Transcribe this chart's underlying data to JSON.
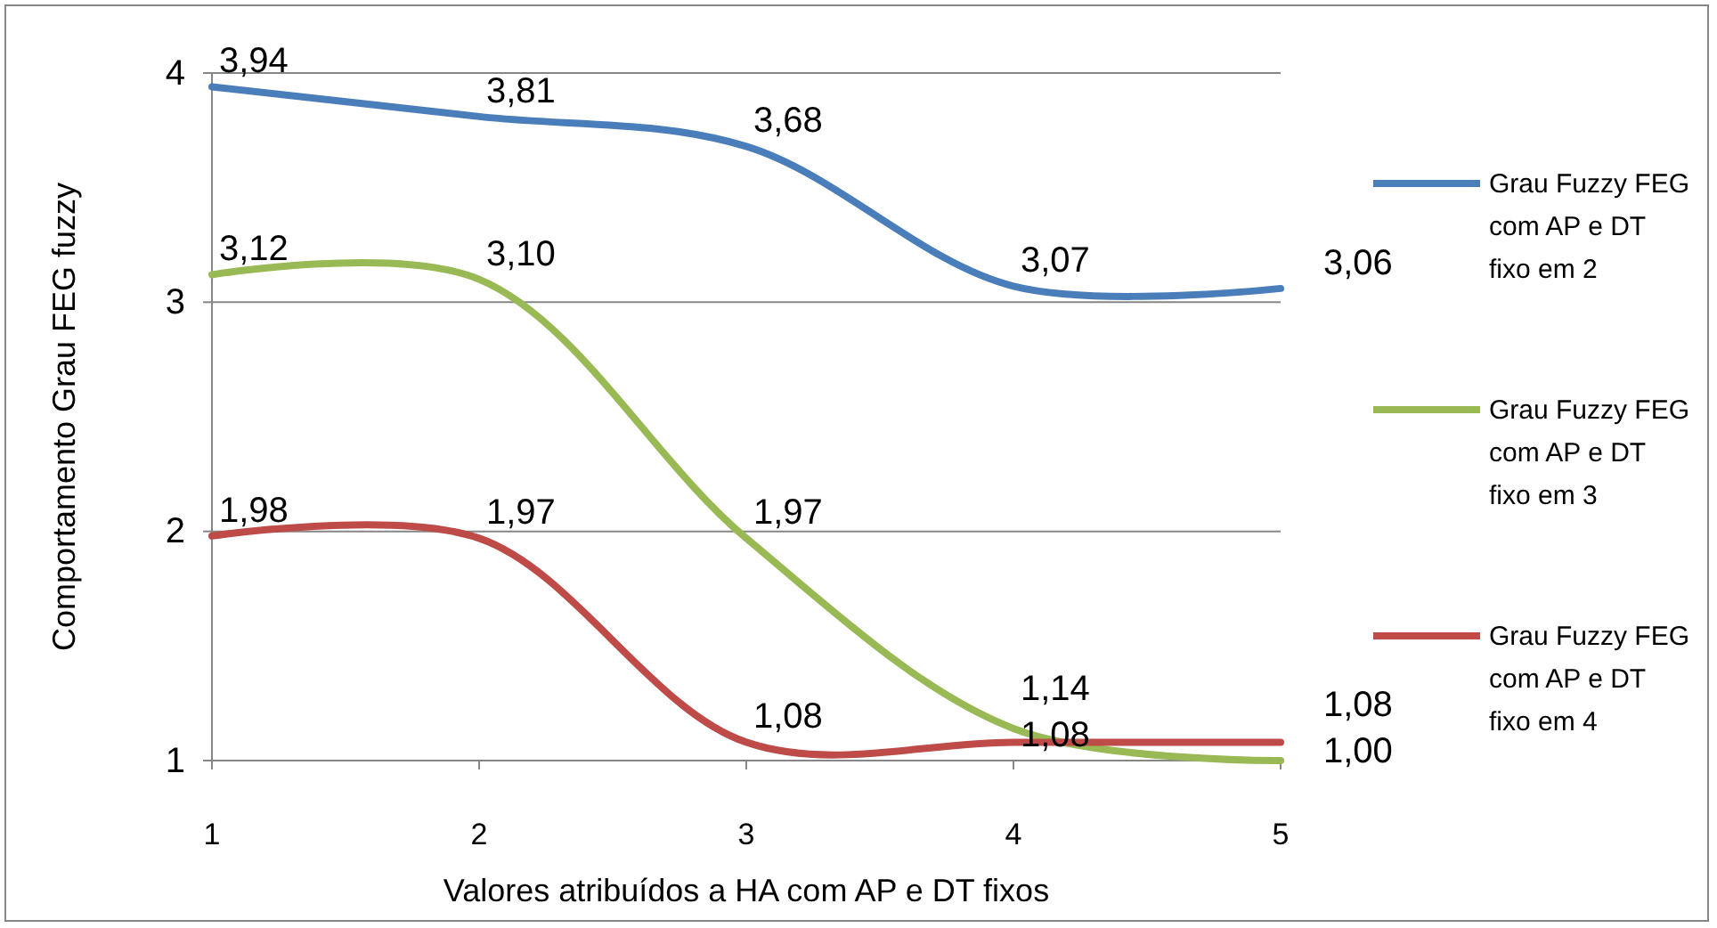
{
  "chart_data": {
    "type": "line",
    "xlabel": "Valores atribuídos a HA com AP e DT fixos",
    "ylabel": "Comportamento Grau FEG fuzzy",
    "x": [
      1,
      2,
      3,
      4,
      5
    ],
    "xlim": [
      1,
      5
    ],
    "xticks": [
      1,
      2,
      3,
      4,
      5
    ],
    "ylim": [
      1,
      4
    ],
    "yticks": [
      1,
      2,
      3,
      4
    ],
    "grid": "y",
    "legend": "right",
    "marker": "none",
    "line_style": "solid",
    "series": [
      {
        "name": "Grau Fuzzy FEG com AP e DT fixo em 2",
        "color": "#4a7ebb",
        "values": [
          3.94,
          3.81,
          3.68,
          3.07,
          3.06
        ],
        "value_labels": [
          "3,94",
          "3,81",
          "3,68",
          "3,07",
          "3,06"
        ]
      },
      {
        "name": "Grau Fuzzy FEG com AP e DT fixo em 3",
        "color": "#98b954",
        "values": [
          3.12,
          3.1,
          1.97,
          1.14,
          1.0
        ],
        "value_labels": [
          "3,12",
          "3,10",
          "1,97",
          "1,14",
          "1,00"
        ]
      },
      {
        "name": "Grau Fuzzy FEG com AP e DT fixo em 4",
        "color": "#be4b48",
        "values": [
          1.98,
          1.97,
          1.08,
          1.08,
          1.08
        ],
        "value_labels": [
          "1,98",
          "1,97",
          "1,08",
          "1,08",
          "1,08"
        ]
      }
    ]
  }
}
